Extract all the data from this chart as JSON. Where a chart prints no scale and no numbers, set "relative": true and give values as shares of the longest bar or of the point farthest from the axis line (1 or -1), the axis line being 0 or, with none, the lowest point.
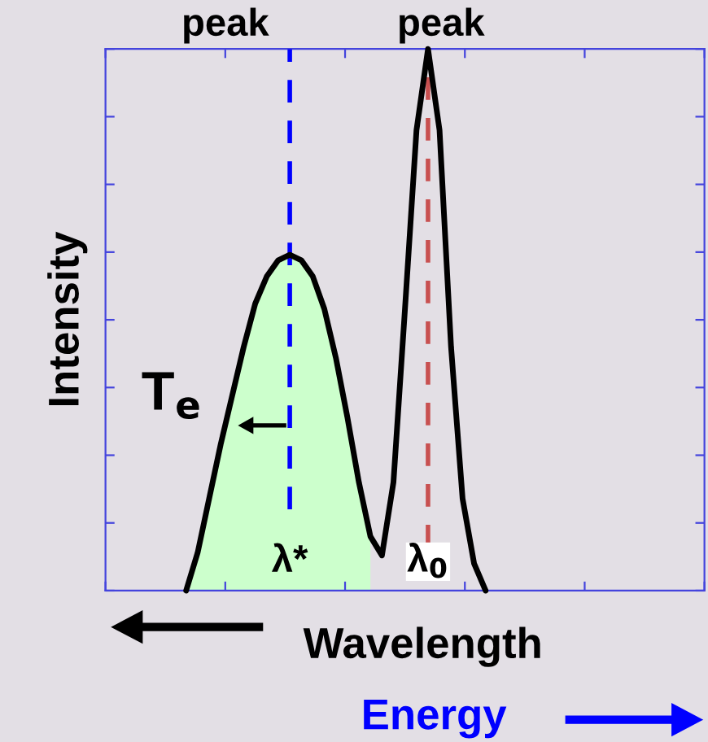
{
  "chart_data": {
    "type": "line",
    "relative": true,
    "ylabel": "Intensity",
    "xlabel": "Wavelength",
    "tick_labels": false,
    "grid": false,
    "categories": [
      null,
      null,
      null,
      null,
      null,
      null,
      null,
      null,
      null,
      null,
      null,
      null,
      null,
      null,
      null,
      null,
      null,
      null,
      null,
      null,
      null,
      null,
      null,
      null,
      null,
      null,
      null,
      null,
      null,
      null,
      null,
      null,
      null,
      null,
      null,
      null,
      null,
      null,
      null,
      null,
      null,
      null,
      null,
      null,
      null,
      null,
      null,
      null,
      null,
      null,
      null,
      null,
      null
    ],
    "series": [
      {
        "type": "area",
        "color": "#ccffcc",
        "values": [
          null,
          null,
          null,
          null,
          null,
          null,
          null,
          0,
          0.07,
          0.17,
          0.27,
          0.36,
          0.45,
          0.53,
          0.58,
          0.61,
          0.62,
          0.61,
          0.58,
          0.52,
          0.43,
          0.32,
          0.2,
          0.1,
          null,
          null,
          null,
          null,
          null,
          null,
          null,
          null,
          null,
          null,
          null,
          null,
          null,
          null,
          null,
          null,
          null,
          null,
          null,
          null,
          null,
          null,
          null,
          null,
          null,
          null,
          null,
          null,
          null
        ]
      },
      {
        "color": "#000000",
        "values": [
          null,
          null,
          null,
          null,
          null,
          null,
          null,
          0,
          0.07,
          0.17,
          0.27,
          0.36,
          0.45,
          0.53,
          0.58,
          0.61,
          0.62,
          0.61,
          0.58,
          0.52,
          0.43,
          0.32,
          0.2,
          0.1,
          0.065,
          0.2,
          0.52,
          0.85,
          1,
          0.85,
          0.45,
          0.17,
          0.05,
          0,
          null,
          null,
          null,
          null,
          null,
          null,
          null,
          null,
          null,
          null,
          null,
          null,
          null,
          null,
          null,
          null,
          null,
          null,
          null
        ]
      }
    ],
    "annotations": [
      "peak",
      "peak",
      "T$_{e}$",
      "Energy",
      "λ*",
      "λ$_{0}$"
    ]
  }
}
